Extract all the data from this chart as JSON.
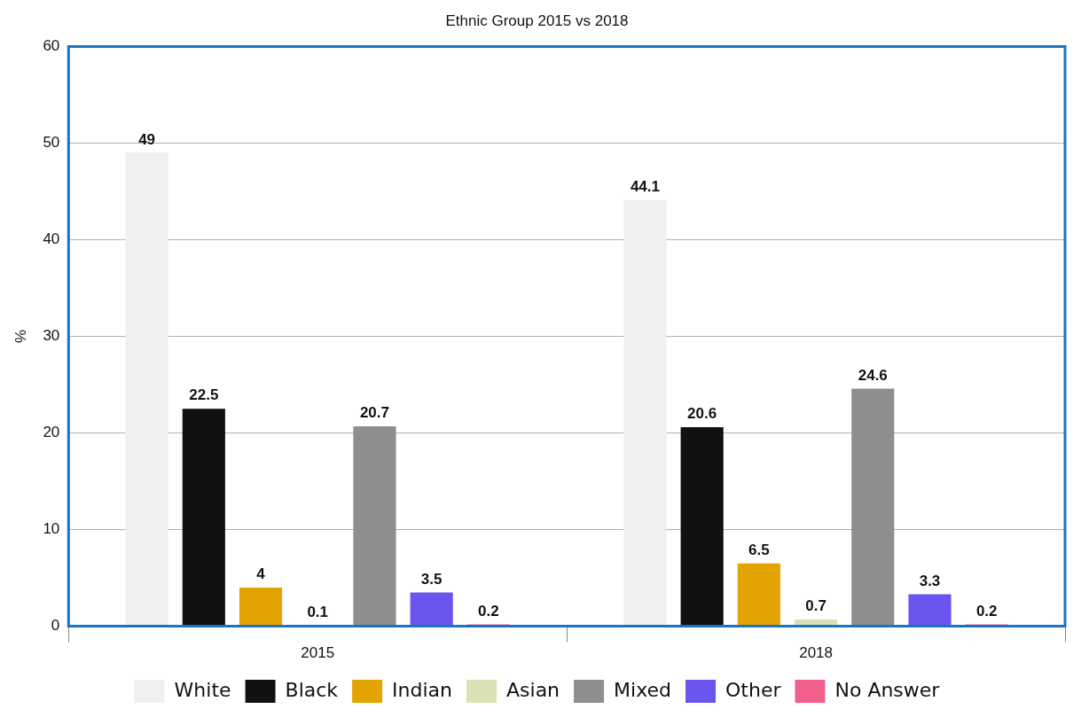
{
  "chart_data": {
    "type": "bar",
    "title": "Ethnic Group 2015 vs 2018",
    "ylabel": "%",
    "categories": [
      "2015",
      "2018"
    ],
    "series": [
      {
        "name": "White",
        "color": "#efefef",
        "values": [
          49,
          44.1
        ]
      },
      {
        "name": "Black",
        "color": "#111111",
        "values": [
          22.5,
          20.6
        ]
      },
      {
        "name": "Indian",
        "color": "#e3a300",
        "values": [
          4,
          6.5
        ]
      },
      {
        "name": "Asian",
        "color": "#d9e2b4",
        "values": [
          0.1,
          0.7
        ]
      },
      {
        "name": "Mixed",
        "color": "#8e8e8e",
        "values": [
          20.7,
          24.6
        ]
      },
      {
        "name": "Other",
        "color": "#6a55ee",
        "values": [
          3.5,
          3.3
        ]
      },
      {
        "name": "No Answer",
        "color": "#f0608a",
        "values": [
          0.2,
          0.2
        ]
      }
    ],
    "ylim": [
      0,
      60
    ],
    "yticks": [
      0,
      10,
      20,
      30,
      40,
      50,
      60
    ],
    "grid": "y",
    "legend": "bottom",
    "data_labels": true
  }
}
